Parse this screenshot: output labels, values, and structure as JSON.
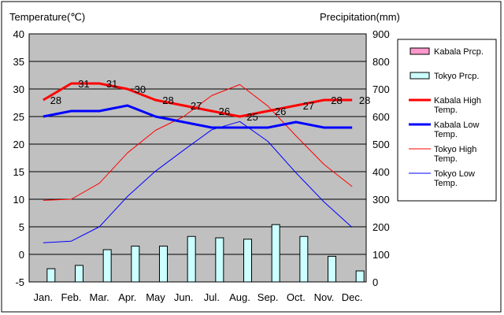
{
  "chart_data": {
    "type": "bar+line",
    "left_axis": {
      "label": "Temperature(℃)",
      "ylim": [
        -5,
        40
      ],
      "ticks": [
        40,
        35,
        30,
        25,
        20,
        15,
        10,
        5,
        0,
        -5
      ]
    },
    "right_axis": {
      "label": "Precipitation(mm)",
      "ylim": [
        0,
        900
      ],
      "ticks": [
        900,
        800,
        700,
        600,
        500,
        400,
        300,
        200,
        100,
        0
      ]
    },
    "categories": [
      "Jan.",
      "Feb.",
      "Mar.",
      "Apr.",
      "May",
      "Jun.",
      "Jul.",
      "Aug.",
      "Sep.",
      "Oct.",
      "Nov.",
      "Dec."
    ],
    "grid": true,
    "legend_position": "right",
    "bar_series": [
      {
        "name": "Kabala Prcp.",
        "axis": "right",
        "color": "#ff99cc",
        "values": [
          0,
          0,
          0,
          0,
          0,
          0,
          0,
          0,
          0,
          0,
          0,
          0
        ]
      },
      {
        "name": "Tokyo Prcp.",
        "axis": "right",
        "color": "#ccffff",
        "values": [
          48,
          60,
          117,
          130,
          130,
          165,
          160,
          155,
          208,
          165,
          93,
          40
        ]
      }
    ],
    "line_series": [
      {
        "name": "Kabala High Temp.",
        "axis": "left",
        "color": "#ff0000",
        "width": 3,
        "values": [
          28,
          31,
          31,
          30,
          28,
          27,
          26,
          25,
          26,
          27,
          28,
          28
        ],
        "labels": [
          "28",
          "31",
          "31",
          "30",
          "28",
          "27",
          "26",
          "25",
          "26",
          "27",
          "28",
          "28"
        ]
      },
      {
        "name": "Kabala Low Temp.",
        "axis": "left",
        "color": "#0000ff",
        "width": 3,
        "values": [
          25,
          26,
          26,
          27,
          25,
          24,
          23,
          23,
          23,
          24,
          23,
          23
        ]
      },
      {
        "name": "Tokyo High Temp.",
        "axis": "left",
        "color": "#ff0000",
        "width": 1,
        "values": [
          9.8,
          10.0,
          12.9,
          18.4,
          22.5,
          25.0,
          28.8,
          30.8,
          26.9,
          21.5,
          16.3,
          12.3
        ]
      },
      {
        "name": "Tokyo Low Temp.",
        "axis": "left",
        "color": "#0000ff",
        "width": 1,
        "values": [
          2.1,
          2.4,
          5.0,
          10.5,
          15.1,
          18.9,
          22.6,
          24.1,
          20.5,
          14.8,
          9.5,
          4.9
        ]
      }
    ],
    "legend": [
      {
        "label1": "Kabala Prcp.",
        "label2": ""
      },
      {
        "label1": "Tokyo Prcp.",
        "label2": ""
      },
      {
        "label1": "Kabala High",
        "label2": "Temp."
      },
      {
        "label1": "Kabala Low",
        "label2": "Temp."
      },
      {
        "label1": "Tokyo High",
        "label2": "Temp."
      },
      {
        "label1": "Tokyo Low",
        "label2": "Temp."
      }
    ]
  }
}
